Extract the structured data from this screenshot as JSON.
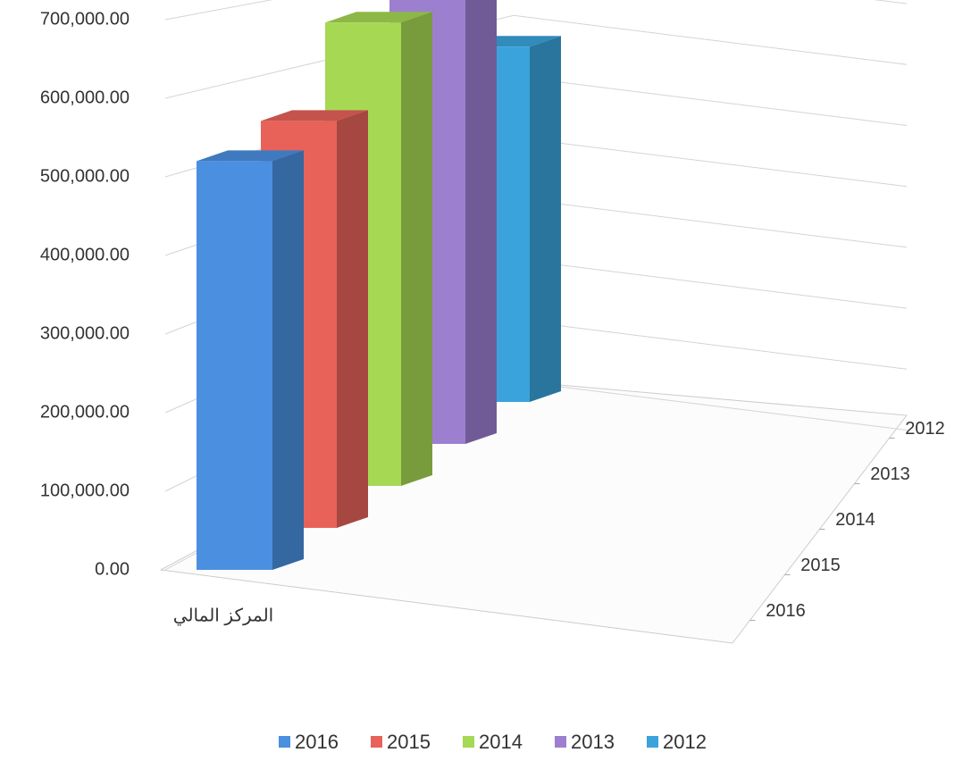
{
  "chart_data": {
    "type": "bar3d",
    "categories": [
      "المركز المالي"
    ],
    "series": [
      {
        "name": "2016",
        "color": "#4a8fe0",
        "values": [
          520000
        ]
      },
      {
        "name": "2015",
        "color": "#e8625a",
        "values": [
          545000
        ]
      },
      {
        "name": "2014",
        "color": "#a6d854",
        "values": [
          655000
        ]
      },
      {
        "name": "2013",
        "color": "#9d7fd0",
        "values": [
          720000
        ]
      },
      {
        "name": "2012",
        "color": "#3aa3dc",
        "values": [
          565000
        ]
      }
    ],
    "ylim": [
      0,
      800000
    ],
    "yticks": [
      {
        "value": 0,
        "label": "0.00"
      },
      {
        "value": 100000,
        "label": "100,000.00"
      },
      {
        "value": 200000,
        "label": "200,000.00"
      },
      {
        "value": 300000,
        "label": "300,000.00"
      },
      {
        "value": 400000,
        "label": "400,000.00"
      },
      {
        "value": 500000,
        "label": "500,000.00"
      },
      {
        "value": 600000,
        "label": "600,000.00"
      },
      {
        "value": 700000,
        "label": "700,000.00"
      }
    ],
    "grid": true,
    "legend": "bottom"
  }
}
